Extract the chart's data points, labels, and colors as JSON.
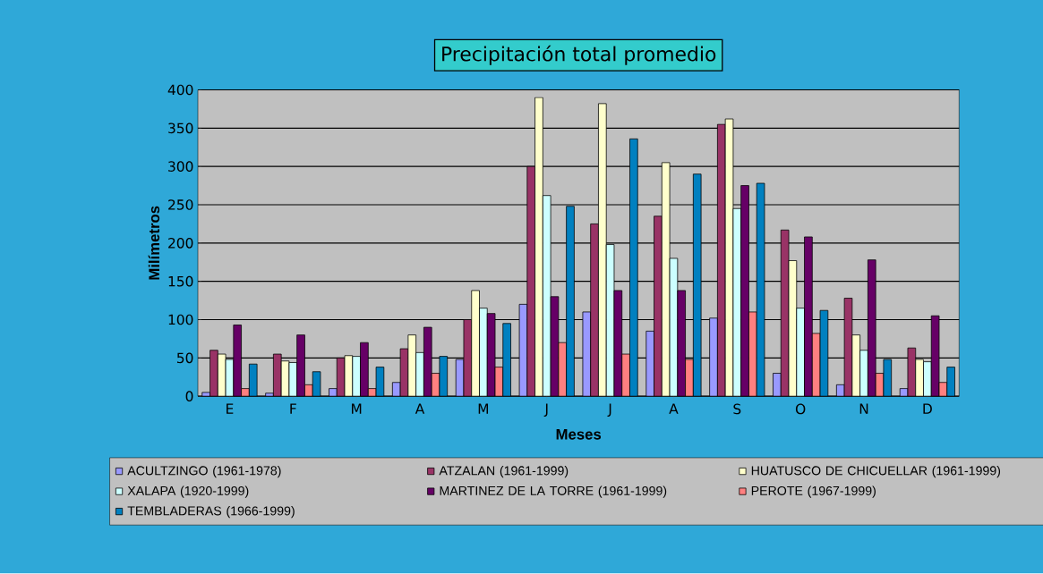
{
  "chart_data": {
    "type": "bar",
    "title": "Precipitación total promedio",
    "xlabel": "Meses",
    "ylabel": "Milímetros",
    "categories": [
      "E",
      "F",
      "M",
      "A",
      "M",
      "J",
      "J",
      "A",
      "S",
      "O",
      "N",
      "D"
    ],
    "series": [
      {
        "name": "ACULTZINGO (1961-1978)",
        "color": "#9999ff",
        "values": [
          5,
          4,
          10,
          18,
          48,
          120,
          110,
          85,
          102,
          30,
          15,
          10
        ]
      },
      {
        "name": "ATZALAN (1961-1999)",
        "color": "#993366",
        "values": [
          60,
          55,
          50,
          62,
          100,
          300,
          225,
          235,
          355,
          217,
          128,
          63
        ]
      },
      {
        "name": "HUATUSCO DE CHICUELLAR (1961-1999)",
        "color": "#ffffcc",
        "values": [
          55,
          46,
          53,
          80,
          138,
          390,
          382,
          305,
          362,
          177,
          80,
          48
        ]
      },
      {
        "name": "XALAPA (1920-1999)",
        "color": "#ccffff",
        "values": [
          48,
          44,
          52,
          57,
          115,
          262,
          198,
          180,
          245,
          115,
          60,
          45
        ]
      },
      {
        "name": "MARTINEZ DE LA TORRE (1961-1999)",
        "color": "#660066",
        "values": [
          93,
          80,
          70,
          90,
          108,
          130,
          138,
          138,
          275,
          208,
          178,
          105
        ]
      },
      {
        "name": "PEROTE (1967-1999)",
        "color": "#ff8080",
        "values": [
          10,
          15,
          10,
          30,
          38,
          70,
          55,
          48,
          110,
          82,
          30,
          18
        ]
      },
      {
        "name": "TEMBLADERAS (1966-1999)",
        "color": "#0080c0",
        "values": [
          42,
          32,
          38,
          52,
          95,
          248,
          336,
          290,
          278,
          112,
          48,
          38
        ]
      }
    ],
    "ylim": [
      0,
      400
    ],
    "yticks": [
      0,
      50,
      100,
      150,
      200,
      250,
      300,
      350,
      400
    ],
    "grid": "y",
    "legend": "bottom"
  }
}
